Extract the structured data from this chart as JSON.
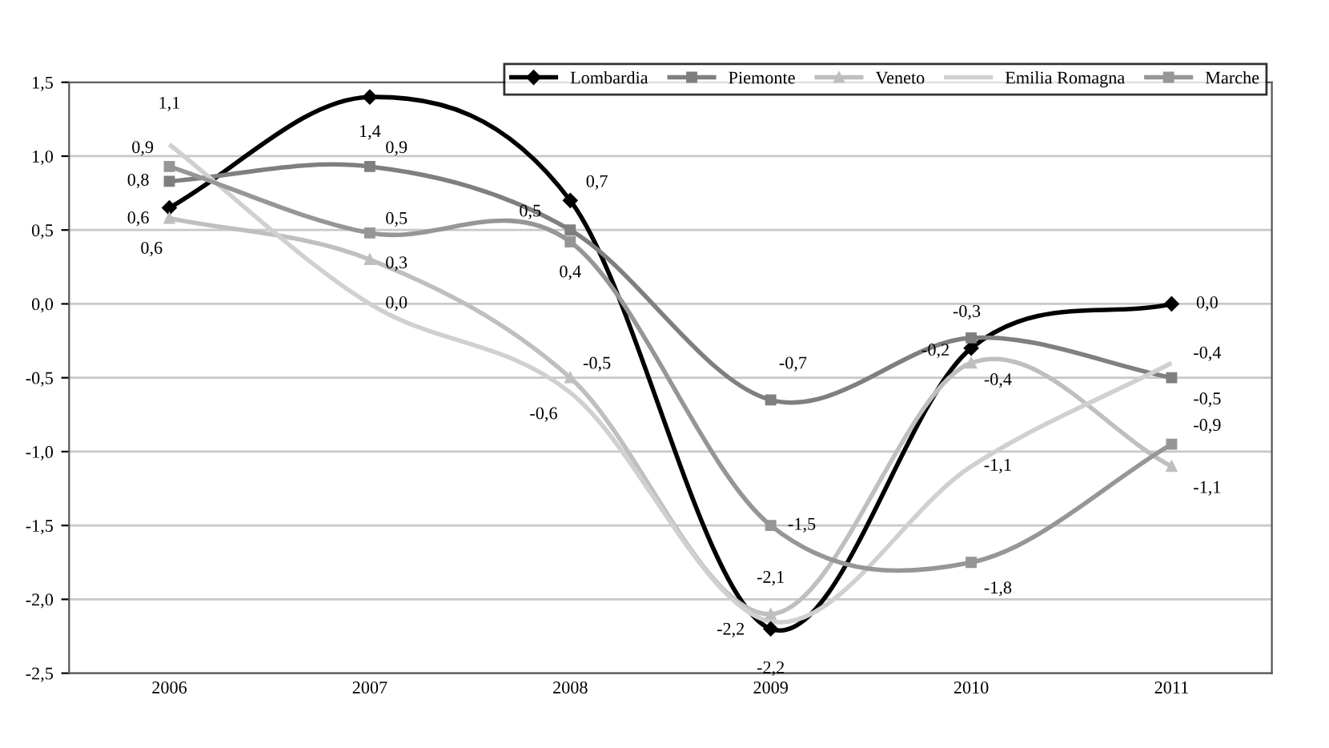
{
  "chart_data": {
    "type": "line",
    "categories": [
      "2006",
      "2007",
      "2008",
      "2009",
      "2010",
      "2011"
    ],
    "series": [
      {
        "name": "Lombardia",
        "color": "#000000",
        "marker": "diamond",
        "values": [
          0.65,
          1.4,
          0.7,
          -2.2,
          -0.3,
          0.0
        ],
        "value_labels": [
          "0,6",
          "1,4",
          "0,7",
          "-2,2",
          "-0,3",
          "0,0"
        ]
      },
      {
        "name": "Piemonte",
        "color": "#7f7f7f",
        "marker": "square",
        "values": [
          0.83,
          0.93,
          0.5,
          -0.65,
          -0.23,
          -0.5
        ],
        "value_labels": [
          "0,8",
          "0,9",
          "0,5",
          "-0,7",
          "-0,2",
          "-0,5"
        ]
      },
      {
        "name": "Veneto",
        "color": "#bfbfbf",
        "marker": "triangle",
        "values": [
          0.58,
          0.3,
          -0.5,
          -2.1,
          -0.4,
          -1.1
        ],
        "value_labels": [
          "0,6",
          "0,3",
          "-0,5",
          "-2,1",
          "-0,4",
          "-1,1"
        ]
      },
      {
        "name": "Emilia Romagna",
        "color": "#d0d0d0",
        "marker": "none",
        "values": [
          1.08,
          0.0,
          -0.6,
          -2.15,
          -1.1,
          -0.4
        ],
        "value_labels": [
          "1,1",
          "0,0",
          "-0,6",
          "-2,2",
          "-1,1",
          "-0,4"
        ]
      },
      {
        "name": "Marche",
        "color": "#969696",
        "marker": "square",
        "values": [
          0.93,
          0.48,
          0.42,
          -1.5,
          -1.75,
          -0.95
        ],
        "value_labels": [
          "0,9",
          "0,5",
          "0,4",
          "-1,5",
          "-1,8",
          "-0,9"
        ]
      }
    ],
    "ylim": [
      -2.5,
      1.5
    ],
    "yticks": [
      {
        "value": -2.5,
        "label": "-2,5"
      },
      {
        "value": -2.0,
        "label": "-2,0"
      },
      {
        "value": -1.5,
        "label": "-1,5"
      },
      {
        "value": -1.0,
        "label": "-1,0"
      },
      {
        "value": -0.5,
        "label": "-0,5"
      },
      {
        "value": 0.0,
        "label": "0,0"
      },
      {
        "value": 0.5,
        "label": "0,5"
      },
      {
        "value": 1.0,
        "label": "1,0"
      },
      {
        "value": 1.5,
        "label": "1,5"
      }
    ],
    "grid": "y",
    "legend": "top right",
    "line_style": "solid"
  }
}
